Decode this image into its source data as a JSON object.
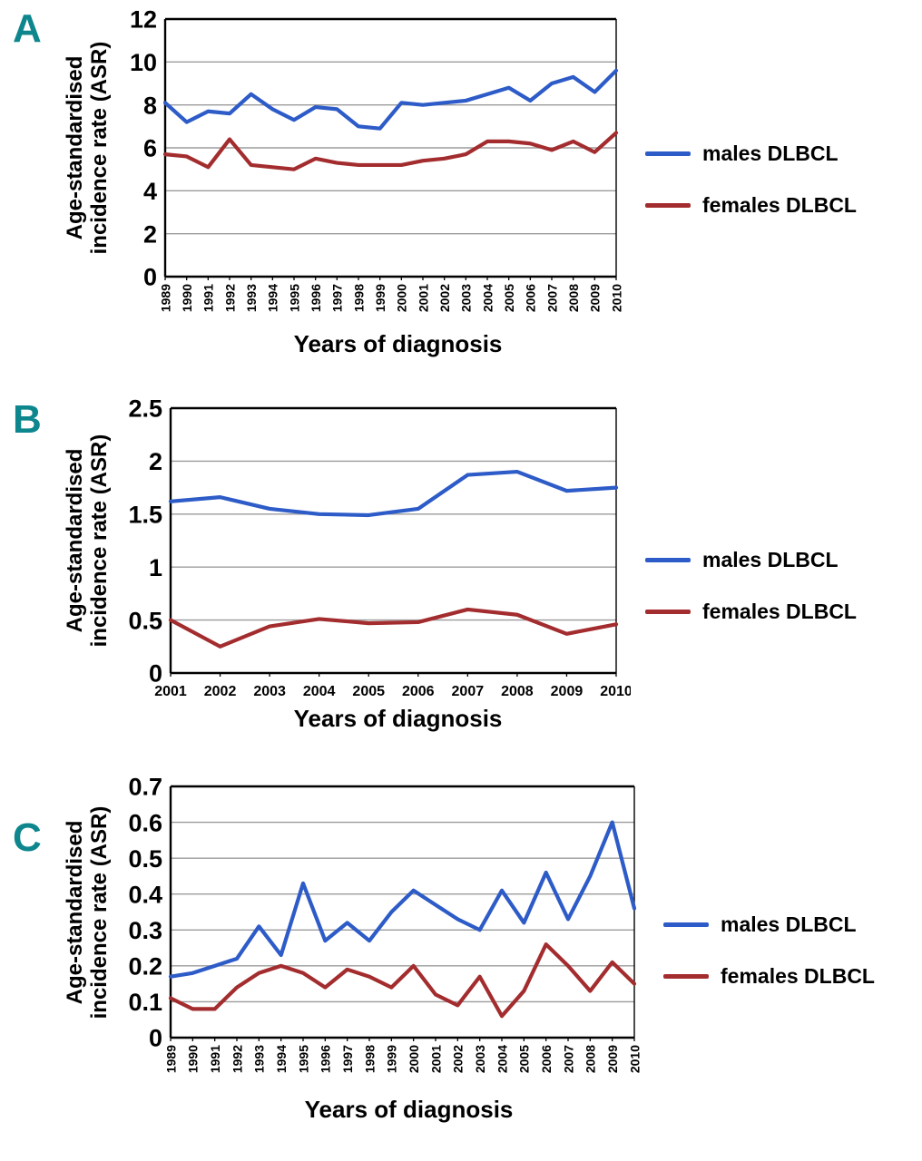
{
  "colors": {
    "males_line": "#2d5bc7",
    "females_line": "#a32c2e",
    "panel_label": "#0d868d",
    "gridline": "#9b9b9b",
    "axis": "#000000"
  },
  "chart_data": [
    {
      "type": "line",
      "panel": "A",
      "xlabel": "Years of diagnosis",
      "ylabel": "Age-standardised incidence rate (ASR)",
      "x": [
        1989,
        1990,
        1991,
        1992,
        1993,
        1994,
        1995,
        1996,
        1997,
        1998,
        1999,
        2000,
        2001,
        2002,
        2003,
        2004,
        2005,
        2006,
        2007,
        2008,
        2009,
        2010
      ],
      "ylim": [
        0,
        12
      ],
      "yticks": [
        0,
        2,
        4,
        6,
        8,
        10,
        12
      ],
      "grid": true,
      "legend_position": "right",
      "x_tick_rotation": 90,
      "series": [
        {
          "name": "males DLBCL",
          "color": "#2d5bc7",
          "values": [
            8.1,
            7.2,
            7.7,
            7.6,
            8.5,
            7.8,
            7.3,
            7.9,
            7.8,
            7.0,
            6.9,
            8.1,
            8.0,
            8.1,
            8.2,
            8.5,
            8.8,
            8.2,
            9.0,
            9.3,
            8.6,
            9.6
          ]
        },
        {
          "name": "females DLBCL",
          "color": "#a32c2e",
          "values": [
            5.7,
            5.6,
            5.1,
            6.4,
            5.2,
            5.1,
            5.0,
            5.5,
            5.3,
            5.2,
            5.2,
            5.2,
            5.4,
            5.5,
            5.7,
            6.3,
            6.3,
            6.2,
            5.9,
            6.3,
            5.8,
            6.7
          ]
        }
      ]
    },
    {
      "type": "line",
      "panel": "B",
      "xlabel": "Years of diagnosis",
      "ylabel": "Age-standardised incidence rate (ASR)",
      "x": [
        2001,
        2002,
        2003,
        2004,
        2005,
        2006,
        2007,
        2008,
        2009,
        2010
      ],
      "ylim": [
        0,
        2.5
      ],
      "yticks": [
        0,
        0.5,
        1,
        1.5,
        2,
        2.5
      ],
      "grid": true,
      "legend_position": "right",
      "x_tick_rotation": 0,
      "series": [
        {
          "name": "males DLBCL",
          "color": "#2d5bc7",
          "values": [
            1.62,
            1.66,
            1.55,
            1.5,
            1.49,
            1.55,
            1.87,
            1.9,
            1.72,
            1.75
          ]
        },
        {
          "name": "females DLBCL",
          "color": "#a32c2e",
          "values": [
            0.5,
            0.25,
            0.44,
            0.51,
            0.47,
            0.48,
            0.6,
            0.55,
            0.37,
            0.46
          ]
        }
      ]
    },
    {
      "type": "line",
      "panel": "C",
      "xlabel": "Years of diagnosis",
      "ylabel": "Age-standardised incidence rate (ASR)",
      "x": [
        1989,
        1990,
        1991,
        1992,
        1993,
        1994,
        1995,
        1996,
        1997,
        1998,
        1999,
        2000,
        2001,
        2002,
        2003,
        2004,
        2005,
        2006,
        2007,
        2008,
        2009,
        2010
      ],
      "ylim": [
        0,
        0.7
      ],
      "yticks": [
        0,
        0.1,
        0.2,
        0.3,
        0.4,
        0.5,
        0.6,
        0.7
      ],
      "grid": true,
      "legend_position": "right",
      "x_tick_rotation": 90,
      "series": [
        {
          "name": "males DLBCL",
          "color": "#2d5bc7",
          "values": [
            0.17,
            0.18,
            0.2,
            0.22,
            0.31,
            0.23,
            0.43,
            0.27,
            0.32,
            0.27,
            0.35,
            0.41,
            0.37,
            0.33,
            0.3,
            0.41,
            0.32,
            0.46,
            0.33,
            0.45,
            0.6,
            0.36
          ]
        },
        {
          "name": "females DLBCL",
          "color": "#a32c2e",
          "values": [
            0.11,
            0.08,
            0.08,
            0.14,
            0.18,
            0.2,
            0.18,
            0.14,
            0.19,
            0.17,
            0.14,
            0.2,
            0.12,
            0.09,
            0.17,
            0.06,
            0.13,
            0.26,
            0.2,
            0.13,
            0.21,
            0.15
          ]
        }
      ]
    }
  ]
}
